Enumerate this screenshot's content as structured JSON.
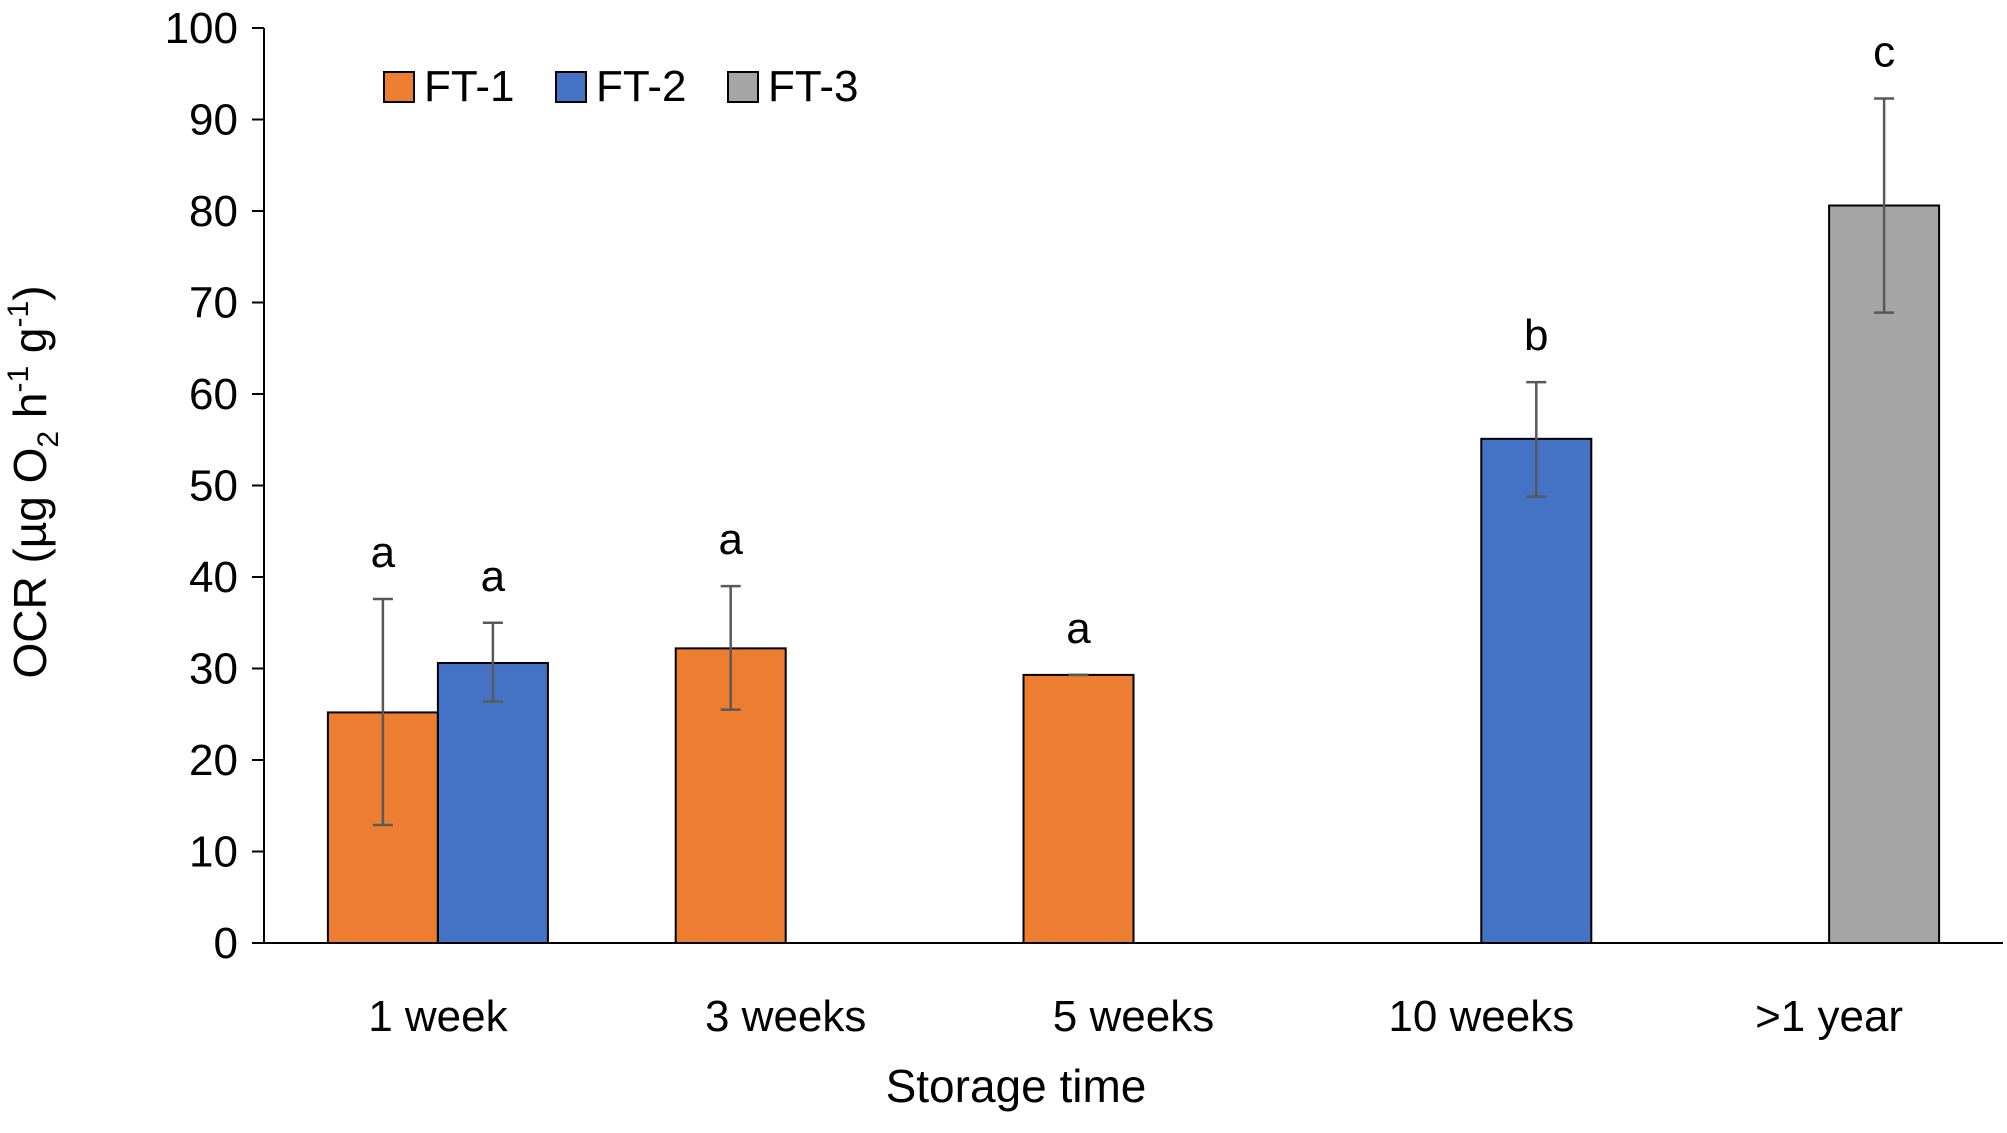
{
  "chart_data": {
    "type": "bar",
    "title": "",
    "xlabel": "Storage time",
    "ylabel": {
      "prefix": "OCR (µg O",
      "sub": "2",
      "mid1": " h",
      "sup1": "-1",
      "mid2": " g",
      "sup2": "-1",
      "suffix": ")"
    },
    "ylim": [
      0,
      100
    ],
    "yticks": [
      "0",
      "10",
      "20",
      "30",
      "40",
      "50",
      "60",
      "70",
      "80",
      "90",
      "100"
    ],
    "categories": [
      "1 week",
      "3 weeks",
      "5 weeks",
      "10 weeks",
      ">1 year"
    ],
    "legend_position": "top-left",
    "series": [
      {
        "name": "FT-1",
        "color": "#ED7D31"
      },
      {
        "name": "FT-2",
        "color": "#4472C4"
      },
      {
        "name": "FT-3",
        "color": "#A5A5A5"
      }
    ],
    "bars": [
      {
        "series": "FT-1",
        "category": "1 week",
        "value": 25.2,
        "err_low": 12.9,
        "err_high": 37.6,
        "label": "a"
      },
      {
        "series": "FT-2",
        "category": "1 week",
        "value": 30.6,
        "err_low": 26.4,
        "err_high": 35.0,
        "label": "a"
      },
      {
        "series": "FT-1",
        "category": "3 weeks",
        "value": 32.2,
        "err_low": 25.5,
        "err_high": 39.0,
        "label": "a"
      },
      {
        "series": "FT-1",
        "category": "5 weeks",
        "value": 29.3,
        "err_low": 29.3,
        "err_high": 29.3,
        "label": "a"
      },
      {
        "series": "FT-2",
        "category": "10 weeks",
        "value": 55.1,
        "err_low": 48.8,
        "err_high": 61.3,
        "label": "b"
      },
      {
        "series": "FT-3",
        "category": ">1 year",
        "value": 80.6,
        "err_low": 68.9,
        "err_high": 92.3,
        "label": "c"
      }
    ]
  }
}
